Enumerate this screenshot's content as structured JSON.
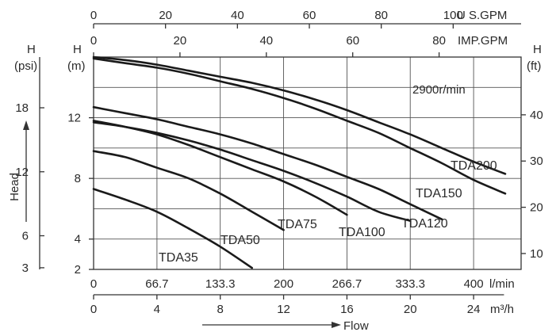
{
  "chart_data": {
    "type": "line",
    "x": [
      0,
      33.3,
      66.7,
      100,
      133.3,
      166.7,
      200,
      233.3,
      266.7,
      300,
      333.3,
      366.7,
      400,
      433.3
    ],
    "xlabel": "l/min",
    "xlim": [
      0,
      450
    ],
    "ylabel": "H (m)",
    "ylim": [
      2,
      16
    ],
    "grid": true,
    "note": "2900r/min",
    "series": [
      {
        "name": "TDA35",
        "values": [
          7.3,
          6.6,
          5.8,
          4.7,
          3.5,
          2.1,
          null,
          null,
          null,
          null,
          null,
          null,
          null,
          null
        ]
      },
      {
        "name": "TDA50",
        "values": [
          9.8,
          9.4,
          8.7,
          8.0,
          7.0,
          5.8,
          4.6,
          null,
          null,
          null,
          null,
          null,
          null,
          null
        ]
      },
      {
        "name": "TDA75",
        "values": [
          11.8,
          11.4,
          10.9,
          10.2,
          9.4,
          8.6,
          7.8,
          6.8,
          5.6,
          null,
          null,
          null,
          null,
          null
        ]
      },
      {
        "name": "TDA100",
        "values": [
          11.7,
          11.4,
          11.0,
          10.5,
          9.9,
          9.2,
          8.5,
          7.7,
          6.8,
          5.8,
          5.2,
          null,
          null,
          null
        ]
      },
      {
        "name": "TDA120",
        "values": [
          12.7,
          12.3,
          11.9,
          11.4,
          10.9,
          10.3,
          9.6,
          8.9,
          8.1,
          7.3,
          6.3,
          5.3,
          null,
          null
        ]
      },
      {
        "name": "TDA150",
        "values": [
          15.9,
          15.6,
          15.3,
          14.9,
          14.4,
          13.9,
          13.3,
          12.6,
          11.8,
          11.0,
          10.0,
          9.0,
          7.9,
          7.0
        ]
      },
      {
        "name": "TDA200",
        "values": [
          16.0,
          15.8,
          15.5,
          15.1,
          14.7,
          14.3,
          13.8,
          13.2,
          12.5,
          11.7,
          10.9,
          10.0,
          9.1,
          8.3
        ]
      }
    ],
    "axes": {
      "left_m": {
        "label": "H",
        "unit": "(m)",
        "ticks": [
          2,
          4,
          8,
          12
        ]
      },
      "left_psi": {
        "label": "H",
        "unit": "(psi)",
        "ticks": [
          3,
          6,
          12,
          18
        ]
      },
      "right_ft": {
        "label": "H",
        "unit": "(ft)",
        "ticks": [
          10,
          20,
          30,
          40
        ]
      },
      "top_usgpm": {
        "unit": "U S.GPM",
        "ticks": [
          0,
          20,
          40,
          60,
          80,
          100
        ]
      },
      "top_impgpm": {
        "unit": "IMP.GPM",
        "ticks": [
          0,
          20,
          40,
          60,
          80
        ]
      },
      "bottom_lmin": {
        "unit": "l/min",
        "ticks": [
          "0",
          "66.7",
          "133.3",
          "200",
          "266.7",
          "333.3",
          "400"
        ]
      },
      "bottom_m3h": {
        "unit": "m³/h",
        "ticks": [
          0,
          4,
          8,
          12,
          16,
          20,
          24
        ]
      }
    },
    "axis_names": {
      "head": "Head",
      "flow": "Flow"
    }
  }
}
